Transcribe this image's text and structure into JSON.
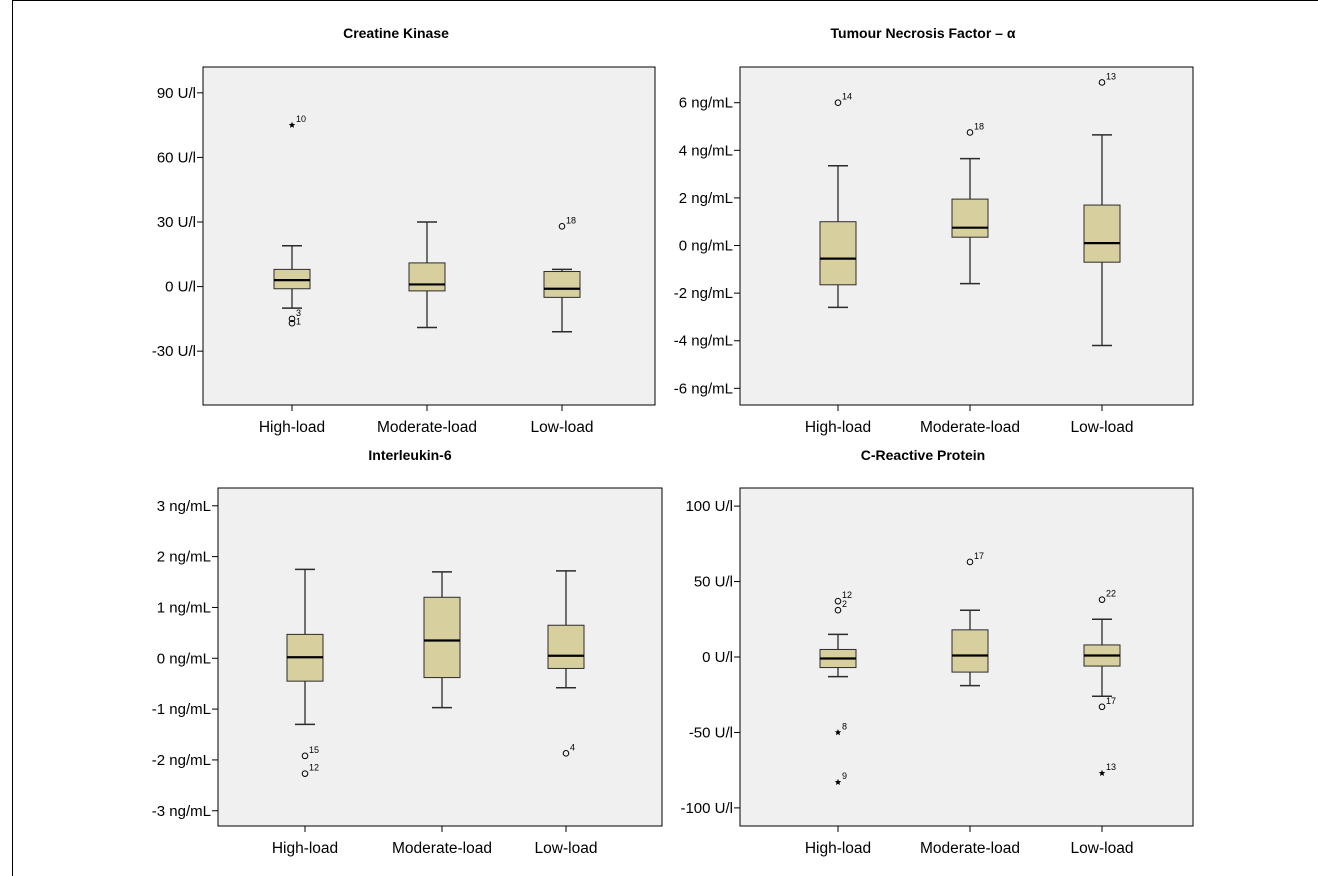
{
  "chart_data": [
    {
      "type": "boxplot",
      "title": "Creatine Kinase",
      "categories": [
        "High-load",
        "Moderate-load",
        "Low-load"
      ],
      "yticks": [
        -30,
        0,
        30,
        60,
        90
      ],
      "tick_labels": [
        "-30 U/l",
        "0 U/l",
        "30 U/l",
        "60 U/l",
        "90 U/l"
      ],
      "ylim": [
        -55,
        102
      ],
      "boxes": [
        {
          "category": "High-load",
          "whisker_low": -10,
          "q1": -1,
          "median": 3,
          "q3": 8,
          "whisker_high": 19,
          "outliers": [
            {
              "value": 75,
              "label": "10",
              "marker": "star"
            },
            {
              "value": -15,
              "label": "3",
              "marker": "circle"
            },
            {
              "value": -17,
              "label": "",
              "marker": "circle"
            },
            {
              "value": -19,
              "label": "1",
              "marker": "none"
            }
          ]
        },
        {
          "category": "Moderate-load",
          "whisker_low": -19,
          "q1": -2,
          "median": 1,
          "q3": 11,
          "whisker_high": 30,
          "outliers": []
        },
        {
          "category": "Low-load",
          "whisker_low": -21,
          "q1": -5,
          "median": -1,
          "q3": 7,
          "whisker_high": 8,
          "outliers": [
            {
              "value": 28,
              "label": "18",
              "marker": "circle"
            }
          ]
        }
      ]
    },
    {
      "type": "boxplot",
      "title": "Tumour Necrosis Factor – α",
      "categories": [
        "High-load",
        "Moderate-load",
        "Low-load"
      ],
      "yticks": [
        -6,
        -4,
        -2,
        0,
        2,
        4,
        6
      ],
      "tick_labels": [
        "-6 ng/mL",
        "-4 ng/mL",
        "-2 ng/mL",
        "0 ng/mL",
        "2 ng/mL",
        "4 ng/mL",
        "6 ng/mL"
      ],
      "ylim": [
        -6.7,
        7.5
      ],
      "boxes": [
        {
          "category": "High-load",
          "whisker_low": -2.6,
          "q1": -1.65,
          "median": -0.55,
          "q3": 1.0,
          "whisker_high": 3.35,
          "outliers": [
            {
              "value": 6.0,
              "label": "14",
              "marker": "circle"
            }
          ]
        },
        {
          "category": "Moderate-load",
          "whisker_low": -1.6,
          "q1": 0.35,
          "median": 0.75,
          "q3": 1.95,
          "whisker_high": 3.65,
          "outliers": [
            {
              "value": 4.75,
              "label": "18",
              "marker": "circle"
            }
          ]
        },
        {
          "category": "Low-load",
          "whisker_low": -4.2,
          "q1": -0.7,
          "median": 0.1,
          "q3": 1.7,
          "whisker_high": 4.65,
          "outliers": [
            {
              "value": 6.85,
              "label": "13",
              "marker": "circle"
            }
          ]
        }
      ]
    },
    {
      "type": "boxplot",
      "title": "Interleukin-6",
      "categories": [
        "High-load",
        "Moderate-load",
        "Low-load"
      ],
      "yticks": [
        -3,
        -2,
        -1,
        0,
        1,
        2,
        3
      ],
      "tick_labels": [
        "-3 ng/mL",
        "-2 ng/mL",
        "-1 ng/mL",
        "0 ng/mL",
        "1 ng/mL",
        "2 ng/mL",
        "3 ng/mL"
      ],
      "ylim": [
        -3.3,
        3.35
      ],
      "boxes": [
        {
          "category": "High-load",
          "whisker_low": -1.3,
          "q1": -0.45,
          "median": 0.02,
          "q3": 0.47,
          "whisker_high": 1.75,
          "outliers": [
            {
              "value": -1.92,
              "label": "15",
              "marker": "circle"
            },
            {
              "value": -2.27,
              "label": "12",
              "marker": "circle"
            }
          ]
        },
        {
          "category": "Moderate-load",
          "whisker_low": -0.97,
          "q1": -0.38,
          "median": 0.35,
          "q3": 1.2,
          "whisker_high": 1.7,
          "outliers": []
        },
        {
          "category": "Low-load",
          "whisker_low": -0.58,
          "q1": -0.2,
          "median": 0.05,
          "q3": 0.65,
          "whisker_high": 1.72,
          "outliers": [
            {
              "value": -1.87,
              "label": "4",
              "marker": "circle"
            }
          ]
        }
      ]
    },
    {
      "type": "boxplot",
      "title": "C-Reactive Protein",
      "categories": [
        "High-load",
        "Moderate-load",
        "Low-load"
      ],
      "yticks": [
        -100,
        -50,
        0,
        50,
        100
      ],
      "tick_labels": [
        "-100 U/l",
        "-50 U/l",
        "0 U/l",
        "50 U/l",
        "100 U/l"
      ],
      "ylim": [
        -112,
        112
      ],
      "boxes": [
        {
          "category": "High-load",
          "whisker_low": -13,
          "q1": -7,
          "median": -1,
          "q3": 5,
          "whisker_high": 15,
          "outliers": [
            {
              "value": 37,
              "label": "12",
              "marker": "circle"
            },
            {
              "value": 31,
              "label": "2",
              "marker": "circle"
            },
            {
              "value": -50,
              "label": "8",
              "marker": "star"
            },
            {
              "value": -83,
              "label": "9",
              "marker": "star"
            }
          ]
        },
        {
          "category": "Moderate-load",
          "whisker_low": -19,
          "q1": -10,
          "median": 1,
          "q3": 18,
          "whisker_high": 31,
          "outliers": [
            {
              "value": 63,
              "label": "17",
              "marker": "circle"
            }
          ]
        },
        {
          "category": "Low-load",
          "whisker_low": -26,
          "q1": -6,
          "median": 1,
          "q3": 8,
          "whisker_high": 25,
          "outliers": [
            {
              "value": 38,
              "label": "22",
              "marker": "circle"
            },
            {
              "value": -33,
              "label": "17",
              "marker": "circle"
            },
            {
              "value": -77,
              "label": "13",
              "marker": "star"
            }
          ]
        }
      ]
    }
  ],
  "colors": {
    "plot_background": "#f0f0f0",
    "box_fill": "#d7d09e",
    "box_stroke": "#2b2b2b",
    "axis": "#000000"
  }
}
